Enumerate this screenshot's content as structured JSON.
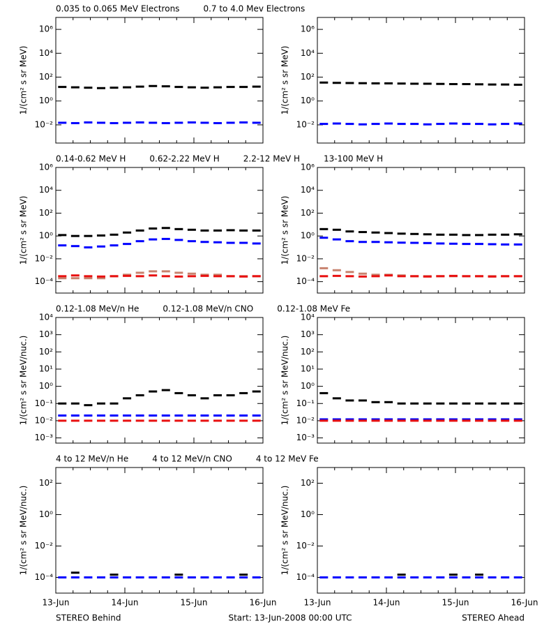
{
  "chart_data": [
    {
      "type": "scatter",
      "log_y": true,
      "ylabel": "1/(cm² s sr MeV)",
      "ylim": [
        0.0003,
        10000000
      ],
      "yticks": [
        {
          "value": 0.01,
          "label": "10⁻²"
        },
        {
          "value": 1,
          "label": "10⁰"
        },
        {
          "value": 100,
          "label": "10²"
        },
        {
          "value": 10000,
          "label": "10⁴"
        },
        {
          "value": 1000000,
          "label": "10⁶"
        }
      ],
      "series": [
        {
          "name": "0.035 to 0.065 MeV Electrons",
          "color": "#000000",
          "values": [
            15,
            14,
            13,
            12,
            13,
            14,
            16,
            18,
            17,
            15,
            14,
            13,
            14,
            15,
            15,
            16
          ]
        },
        {
          "name": "0.7 to 4.0 Mev Electrons",
          "color": "#0000ff",
          "values": [
            0.015,
            0.014,
            0.016,
            0.015,
            0.014,
            0.015,
            0.016,
            0.015,
            0.014,
            0.015,
            0.016,
            0.015,
            0.014,
            0.015,
            0.016,
            0.015
          ]
        }
      ]
    },
    {
      "type": "scatter",
      "log_y": true,
      "ylabel": "1/(cm² s sr MeV)",
      "ylim": [
        0.0003,
        10000000
      ],
      "yticks": [
        {
          "value": 0.01,
          "label": "10⁻²"
        },
        {
          "value": 1,
          "label": "10⁰"
        },
        {
          "value": 100,
          "label": "10²"
        },
        {
          "value": 10000,
          "label": "10⁴"
        },
        {
          "value": 1000000,
          "label": "10⁶"
        }
      ],
      "series": [
        {
          "color": "#000000",
          "values": [
            35,
            33,
            32,
            31,
            30,
            30,
            29,
            28,
            28,
            27,
            26,
            26,
            25,
            24,
            24,
            23
          ]
        },
        {
          "color": "#0000ff",
          "values": [
            0.012,
            0.013,
            0.012,
            0.011,
            0.012,
            0.013,
            0.012,
            0.012,
            0.011,
            0.012,
            0.013,
            0.012,
            0.012,
            0.011,
            0.012,
            0.013
          ]
        }
      ]
    },
    {
      "type": "scatter",
      "log_y": true,
      "ylabel": "1/(cm² s sr MeV)",
      "ylim": [
        1e-05,
        1000000
      ],
      "yticks": [
        {
          "value": 0.0001,
          "label": "10⁻⁴"
        },
        {
          "value": 0.01,
          "label": "10⁻²"
        },
        {
          "value": 1,
          "label": "10⁰"
        },
        {
          "value": 100,
          "label": "10²"
        },
        {
          "value": 10000,
          "label": "10⁴"
        },
        {
          "value": 1000000,
          "label": "10⁶"
        }
      ],
      "series": [
        {
          "name": "0.14-0.62 MeV H",
          "color": "#000000",
          "values": [
            1.2,
            1,
            1,
            1.1,
            1.3,
            2,
            3,
            4.5,
            5,
            4,
            3.5,
            3,
            3,
            3.2,
            3,
            3
          ]
        },
        {
          "name": "0.62-2.22 MeV H",
          "color": "#0000ff",
          "values": [
            0.15,
            0.13,
            0.1,
            0.12,
            0.15,
            0.2,
            0.35,
            0.5,
            0.55,
            0.45,
            0.35,
            0.3,
            0.28,
            0.25,
            0.25,
            0.22
          ]
        },
        {
          "name": "2.2-12 MeV H",
          "color": "#c8826e",
          "values": [
            0.0002,
            0.0002,
            0.0002,
            0.0002,
            0.0003,
            0.0004,
            0.0006,
            0.0008,
            0.0008,
            0.0006,
            0.0005,
            0.0004,
            0.0004,
            0.0003,
            0.0003,
            0.0003
          ]
        },
        {
          "name": "13-100 MeV H",
          "color": "#e81010",
          "values": [
            0.0003,
            0.00035,
            0.0003,
            0.00028,
            0.0003,
            0.00032,
            0.0003,
            0.00035,
            0.0003,
            0.00028,
            0.0003,
            0.00032,
            0.0003,
            0.0003,
            0.00028,
            0.0003
          ]
        }
      ]
    },
    {
      "type": "scatter",
      "log_y": true,
      "ylabel": "1/(cm² s sr MeV)",
      "ylim": [
        1e-05,
        1000000
      ],
      "yticks": [
        {
          "value": 0.0001,
          "label": "10⁻⁴"
        },
        {
          "value": 0.01,
          "label": "10⁻²"
        },
        {
          "value": 1,
          "label": "10⁰"
        },
        {
          "value": 100,
          "label": "10²"
        },
        {
          "value": 10000,
          "label": "10⁴"
        },
        {
          "value": 1000000,
          "label": "10⁶"
        }
      ],
      "series": [
        {
          "color": "#000000",
          "values": [
            4,
            3.5,
            2.5,
            2.2,
            2,
            1.8,
            1.6,
            1.5,
            1.4,
            1.3,
            1.3,
            1.2,
            1.2,
            1.3,
            1.3,
            1.4
          ]
        },
        {
          "color": "#0000ff",
          "values": [
            0.7,
            0.5,
            0.35,
            0.3,
            0.3,
            0.28,
            0.26,
            0.25,
            0.24,
            0.22,
            0.21,
            0.2,
            0.2,
            0.19,
            0.18,
            0.18
          ]
        },
        {
          "color": "#c8826e",
          "values": [
            0.0015,
            0.001,
            0.0007,
            0.0005,
            0.0004,
            0.0004,
            0.00035,
            0.0003,
            0.0003,
            0.0003,
            0.0003,
            0.0003,
            0.0003,
            0.0003,
            0.0003,
            0.0003
          ]
        },
        {
          "color": "#e81010",
          "values": [
            0.0003,
            0.00032,
            0.0003,
            0.00028,
            0.0003,
            0.00035,
            0.0003,
            0.0003,
            0.00028,
            0.0003,
            0.00032,
            0.0003,
            0.0003,
            0.00028,
            0.0003,
            0.0003
          ]
        }
      ]
    },
    {
      "type": "scatter",
      "log_y": true,
      "ylabel": "1/(cm² s sr MeV/nuc.)",
      "ylim": [
        0.0005,
        10000
      ],
      "yticks": [
        {
          "value": 0.001,
          "label": "10⁻³"
        },
        {
          "value": 0.01,
          "label": "10⁻²"
        },
        {
          "value": 0.1,
          "label": "10⁻¹"
        },
        {
          "value": 1,
          "label": "10⁰"
        },
        {
          "value": 10,
          "label": "10¹"
        },
        {
          "value": 100,
          "label": "10²"
        },
        {
          "value": 1000,
          "label": "10³"
        },
        {
          "value": 10000,
          "label": "10⁴"
        }
      ],
      "series": [
        {
          "name": "0.12-1.08 MeV/n He",
          "color": "#000000",
          "values": [
            0.1,
            0.1,
            0.08,
            0.1,
            0.1,
            0.2,
            0.3,
            0.5,
            0.6,
            0.4,
            0.3,
            0.2,
            0.3,
            0.3,
            0.4,
            0.5
          ]
        },
        {
          "name": "0.12-1.08 MeV/n CNO",
          "color": "#0000ff",
          "values": [
            0.02,
            0.02,
            0.02,
            0.02,
            0.02,
            0.02,
            0.02,
            0.02,
            0.02,
            0.02,
            0.02,
            0.02,
            0.02,
            0.02,
            0.02,
            0.02
          ]
        },
        {
          "name": "0.12-1.08 MeV Fe",
          "color": "#e81010",
          "values": [
            0.01,
            0.01,
            0.01,
            0.01,
            0.01,
            0.01,
            0.01,
            0.01,
            0.01,
            0.01,
            0.01,
            0.01,
            0.01,
            0.01,
            0.01,
            0.01
          ]
        }
      ]
    },
    {
      "type": "scatter",
      "log_y": true,
      "ylabel": "1/(cm² s sr MeV/nuc.)",
      "ylim": [
        0.0005,
        10000
      ],
      "yticks": [
        {
          "value": 0.001,
          "label": "10⁻³"
        },
        {
          "value": 0.01,
          "label": "10⁻²"
        },
        {
          "value": 0.1,
          "label": "10⁻¹"
        },
        {
          "value": 1,
          "label": "10⁰"
        },
        {
          "value": 10,
          "label": "10¹"
        },
        {
          "value": 100,
          "label": "10²"
        },
        {
          "value": 1000,
          "label": "10³"
        },
        {
          "value": 10000,
          "label": "10⁴"
        }
      ],
      "series": [
        {
          "color": "#000000",
          "values": [
            0.4,
            0.2,
            0.15,
            0.15,
            0.12,
            0.12,
            0.1,
            0.1,
            0.1,
            0.1,
            0.1,
            0.1,
            0.1,
            0.1,
            0.1,
            0.1
          ]
        },
        {
          "color": "#0000ff",
          "values": [
            0.012,
            0.012,
            0.012,
            0.012,
            0.012,
            0.012,
            0.012,
            0.012,
            0.012,
            0.012,
            0.012,
            0.012,
            0.012,
            0.012,
            0.012,
            0.012
          ]
        },
        {
          "color": "#e81010",
          "values": [
            0.01,
            0.01,
            0.01,
            0.01,
            0.01,
            0.01,
            0.01,
            0.01,
            0.01,
            0.01,
            0.01,
            0.01,
            0.01,
            0.01,
            0.01,
            0.01
          ]
        }
      ]
    },
    {
      "type": "scatter",
      "log_y": true,
      "ylabel": "1/(cm² s sr MeV/nuc.)",
      "ylim": [
        1e-05,
        1000
      ],
      "yticks": [
        {
          "value": 0.0001,
          "label": "10⁻⁴"
        },
        {
          "value": 0.01,
          "label": "10⁻²"
        },
        {
          "value": 1,
          "label": "10⁰"
        },
        {
          "value": 100,
          "label": "10²"
        }
      ],
      "xticks": [
        "13-Jun",
        "14-Jun",
        "15-Jun",
        "16-Jun"
      ],
      "series": [
        {
          "name": "4 to 12 MeV/n He",
          "color": "#000000",
          "values": [
            null,
            0.0002,
            null,
            null,
            0.00015,
            null,
            null,
            null,
            null,
            0.00015,
            null,
            null,
            null,
            null,
            0.00015,
            null
          ]
        },
        {
          "name": "4 to 12 MeV/n CNO",
          "color": "#0000ff",
          "values": [
            0.0001,
            0.0001,
            0.0001,
            0.0001,
            0.0001,
            0.0001,
            0.0001,
            0.0001,
            0.0001,
            0.0001,
            0.0001,
            0.0001,
            0.0001,
            0.0001,
            0.0001,
            0.0001
          ]
        },
        {
          "name": "4 to 12 MeV Fe",
          "color": "#e81010",
          "values": [
            null,
            null,
            null,
            null,
            null,
            null,
            null,
            null,
            null,
            null,
            null,
            null,
            null,
            null,
            null,
            null
          ]
        }
      ]
    },
    {
      "type": "scatter",
      "log_y": true,
      "ylabel": "1/(cm² s sr MeV/nuc.)",
      "ylim": [
        1e-05,
        1000
      ],
      "yticks": [
        {
          "value": 0.0001,
          "label": "10⁻⁴"
        },
        {
          "value": 0.01,
          "label": "10⁻²"
        },
        {
          "value": 1,
          "label": "10⁰"
        },
        {
          "value": 100,
          "label": "10²"
        }
      ],
      "xticks": [
        "13-Jun",
        "14-Jun",
        "15-Jun",
        "16-Jun"
      ],
      "series": [
        {
          "color": "#000000",
          "values": [
            null,
            null,
            null,
            null,
            null,
            null,
            0.00015,
            null,
            null,
            null,
            0.00015,
            null,
            0.00015,
            null,
            null,
            null
          ]
        },
        {
          "color": "#0000ff",
          "values": [
            0.0001,
            0.0001,
            0.0001,
            0.0001,
            0.0001,
            0.0001,
            0.0001,
            0.0001,
            0.0001,
            0.0001,
            0.0001,
            0.0001,
            0.0001,
            0.0001,
            0.0001,
            0.0001
          ]
        },
        {
          "color": "#e81010",
          "values": [
            null,
            null,
            null,
            null,
            null,
            null,
            null,
            null,
            null,
            null,
            null,
            null,
            null,
            null,
            null,
            null
          ]
        }
      ]
    }
  ],
  "footer": {
    "left": "STEREO Behind",
    "center": "Start: 13-Jun-2008 00:00 UTC",
    "right": "STEREO Ahead"
  }
}
